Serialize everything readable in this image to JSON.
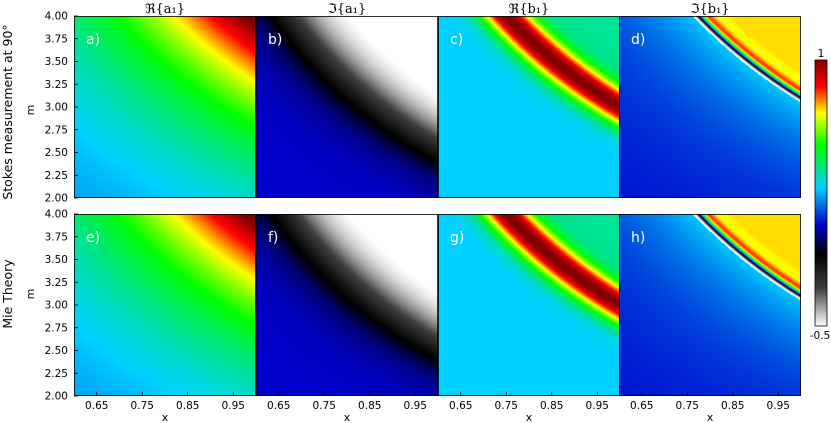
{
  "row_labels": [
    "Stokes measurement at 90°",
    "Mie Theory"
  ],
  "column_titles": [
    "ℜ{a₁}",
    "ℑ{a₁}",
    "ℜ{b₁}",
    "ℑ{b₁}"
  ],
  "colorbar": {
    "max_label": "1",
    "min_label": "-0.5",
    "range": [
      -0.5,
      1
    ],
    "stops": [
      "#ffffff",
      "#000000",
      "#0000cc",
      "#00d0ff",
      "#00ff00",
      "#ffff00",
      "#ff0000",
      "#800000"
    ]
  },
  "chart_data": {
    "type": "heatmap",
    "xlabel": "x",
    "ylabel": "m",
    "xlim": [
      0.6,
      1.0
    ],
    "ylim": [
      2.0,
      4.0
    ],
    "x_ticks": [
      "0.65",
      "0.75",
      "0.85",
      "0.95"
    ],
    "y_ticks": [
      "2.00",
      "2.25",
      "2.50",
      "2.75",
      "3.00",
      "3.25",
      "3.50",
      "3.75",
      "4.00"
    ],
    "value_range": [
      -0.5,
      1
    ],
    "panels": [
      {
        "letter": "a)",
        "row": 0,
        "col": 0,
        "quantity": "Re{a1}"
      },
      {
        "letter": "b)",
        "row": 0,
        "col": 1,
        "quantity": "Im{a1}"
      },
      {
        "letter": "c)",
        "row": 0,
        "col": 2,
        "quantity": "Re{b1}"
      },
      {
        "letter": "d)",
        "row": 0,
        "col": 3,
        "quantity": "Im{b1}"
      },
      {
        "letter": "e)",
        "row": 1,
        "col": 0,
        "quantity": "Re{a1}"
      },
      {
        "letter": "f)",
        "row": 1,
        "col": 1,
        "quantity": "Im{a1}"
      },
      {
        "letter": "g)",
        "row": 1,
        "col": 2,
        "quantity": "Re{b1}"
      },
      {
        "letter": "h)",
        "row": 1,
        "col": 3,
        "quantity": "Im{b1}"
      }
    ]
  }
}
